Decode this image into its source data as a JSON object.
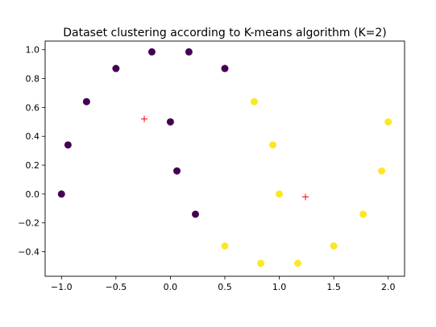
{
  "chart_data": {
    "type": "scatter",
    "title": "Dataset clustering according to K-means algorithm (K=2)",
    "xlabel": "",
    "ylabel": "",
    "xlim": [
      -1.15,
      2.15
    ],
    "ylim": [
      -0.57,
      1.06
    ],
    "xticks": [
      -1.0,
      -0.5,
      0.0,
      0.5,
      1.0,
      1.5,
      2.0
    ],
    "xtick_labels": [
      "−1.0",
      "−0.5",
      "0.0",
      "0.5",
      "1.0",
      "1.5",
      "2.0"
    ],
    "yticks": [
      -0.4,
      -0.2,
      0.0,
      0.2,
      0.4,
      0.6,
      0.8,
      1.0
    ],
    "ytick_labels": [
      "−0.4",
      "−0.2",
      "0.0",
      "0.2",
      "0.4",
      "0.6",
      "0.8",
      "1.0"
    ],
    "grid": false,
    "legend": "none",
    "series": [
      {
        "color": "#440154",
        "points": [
          {
            "x": -1.0,
            "y": 0.0
          },
          {
            "x": -0.94,
            "y": 0.34
          },
          {
            "x": -0.77,
            "y": 0.64
          },
          {
            "x": -0.5,
            "y": 0.87
          },
          {
            "x": -0.17,
            "y": 0.985
          },
          {
            "x": 0.17,
            "y": 0.985
          },
          {
            "x": 0.5,
            "y": 0.87
          },
          {
            "x": 0.0,
            "y": 0.5
          },
          {
            "x": 0.06,
            "y": 0.16
          },
          {
            "x": 0.23,
            "y": -0.14
          }
        ]
      },
      {
        "color": "#fde725",
        "points": [
          {
            "x": 0.77,
            "y": 0.64
          },
          {
            "x": 0.94,
            "y": 0.34
          },
          {
            "x": 1.0,
            "y": 0.0
          },
          {
            "x": 2.0,
            "y": 0.5
          },
          {
            "x": 1.94,
            "y": 0.16
          },
          {
            "x": 1.77,
            "y": -0.14
          },
          {
            "x": 1.5,
            "y": -0.36
          },
          {
            "x": 1.17,
            "y": -0.48
          },
          {
            "x": 0.83,
            "y": -0.48
          },
          {
            "x": 0.5,
            "y": -0.36
          }
        ]
      }
    ],
    "centroids": {
      "color": "#ff0000",
      "marker": "+",
      "points": [
        {
          "x": -0.24,
          "y": 0.52
        },
        {
          "x": 1.24,
          "y": -0.02
        }
      ]
    }
  }
}
